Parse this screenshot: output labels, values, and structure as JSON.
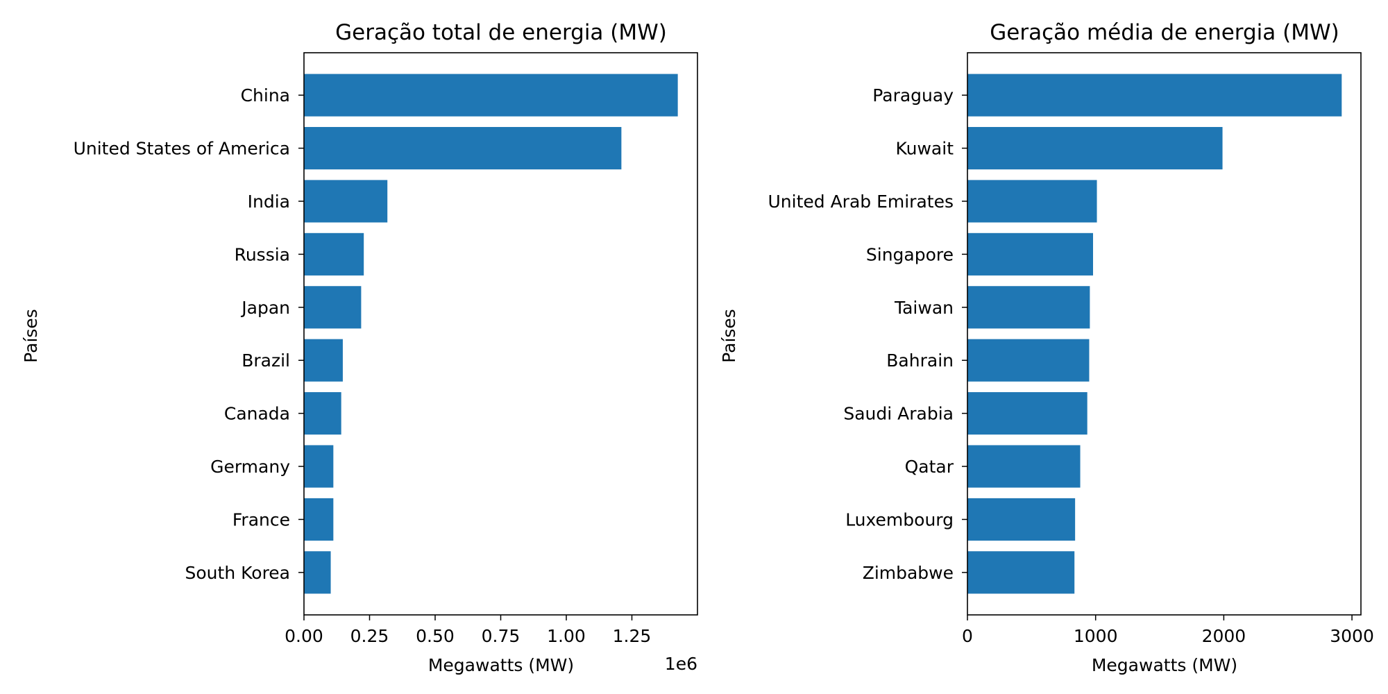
{
  "chart_data": [
    {
      "type": "bar",
      "orientation": "horizontal",
      "title": "Geração total de energia (MW)",
      "xlabel": "Megawatts (MW)",
      "ylabel": "Países",
      "x_offset_text": "1e6",
      "categories": [
        "China",
        "United States of America",
        "India",
        "Russia",
        "Japan",
        "Brazil",
        "Canada",
        "Germany",
        "France",
        "South Korea"
      ],
      "values": [
        1425000,
        1210000,
        318000,
        228000,
        218000,
        148000,
        142000,
        112000,
        112000,
        102000
      ],
      "xlim": [
        0,
        1500000
      ],
      "xticks": [
        0,
        250000,
        500000,
        750000,
        1000000,
        1250000
      ],
      "xtick_labels": [
        "0.00",
        "0.25",
        "0.50",
        "0.75",
        "1.00",
        "1.25"
      ],
      "bar_color": "#1f77b4",
      "grid": false
    },
    {
      "type": "bar",
      "orientation": "horizontal",
      "title": "Geração média de energia (MW)",
      "xlabel": "Megawatts (MW)",
      "ylabel": "Países",
      "categories": [
        "Paraguay",
        "Kuwait",
        "United Arab Emirates",
        "Singapore",
        "Taiwan",
        "Bahrain",
        "Saudi Arabia",
        "Qatar",
        "Luxembourg",
        "Zimbabwe"
      ],
      "values": [
        2920,
        1990,
        1010,
        980,
        955,
        950,
        935,
        880,
        840,
        835
      ],
      "xlim": [
        0,
        3070
      ],
      "xticks": [
        0,
        1000,
        2000,
        3000
      ],
      "xtick_labels": [
        "0",
        "1000",
        "2000",
        "3000"
      ],
      "bar_color": "#1f77b4",
      "grid": false
    }
  ]
}
